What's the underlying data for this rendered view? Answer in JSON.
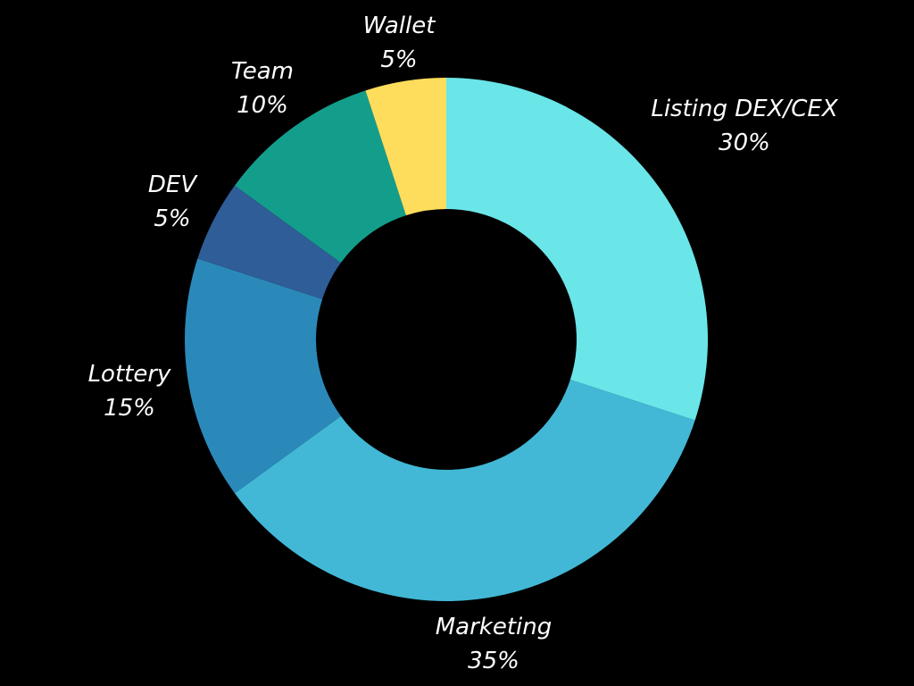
{
  "chart_data": {
    "type": "pie",
    "variant": "donut",
    "start": "top",
    "direction": "clockwise",
    "background_color": "#000000",
    "slices": [
      {
        "label": "Listing DEX/CEX",
        "value": 30,
        "value_label": "30%",
        "color": "#6AE5E8"
      },
      {
        "label": "Marketing",
        "value": 35,
        "value_label": "35%",
        "color": "#42B8D6"
      },
      {
        "label": "Lottery",
        "value": 15,
        "value_label": "15%",
        "color": "#2B89BA"
      },
      {
        "label": "DEV",
        "value": 5,
        "value_label": "5%",
        "color": "#2E5D97"
      },
      {
        "label": "Team",
        "value": 10,
        "value_label": "10%",
        "color": "#139E8C"
      },
      {
        "label": "Wallet",
        "value": 5,
        "value_label": "5%",
        "color": "#FFDD5C"
      }
    ]
  }
}
